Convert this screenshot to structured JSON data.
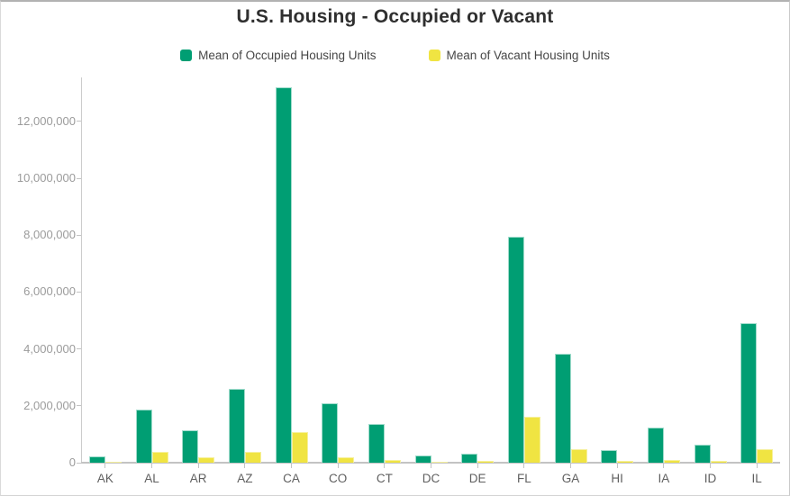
{
  "window": {
    "frame_border_color": "#c9c9c9",
    "background": "#ffffff"
  },
  "chart_data": {
    "type": "bar",
    "title": "U.S. Housing - Occupied or Vacant",
    "xlabel": "",
    "ylabel": "",
    "categories": [
      "AK",
      "AL",
      "AR",
      "AZ",
      "CA",
      "CO",
      "CT",
      "DC",
      "DE",
      "FL",
      "GA",
      "HI",
      "IA",
      "ID",
      "IL"
    ],
    "series": [
      {
        "name": "Mean of Occupied Housing Units",
        "color": "#009e73",
        "border_color": "#9fdbcb",
        "values": [
          220000,
          1860000,
          1150000,
          2590000,
          13210000,
          2100000,
          1360000,
          240000,
          330000,
          7930000,
          3820000,
          440000,
          1240000,
          620000,
          4890000
        ]
      },
      {
        "name": "Mean of Vacant Housing Units",
        "color": "#f0e442",
        "border_color": "#f6f09b",
        "values": [
          45000,
          365000,
          195000,
          365000,
          1070000,
          190000,
          95000,
          35000,
          60000,
          1600000,
          460000,
          75000,
          105000,
          70000,
          465000
        ]
      }
    ],
    "y_ticks": {
      "values": [
        0,
        2000000,
        4000000,
        6000000,
        8000000,
        10000000,
        12000000
      ],
      "labels": [
        "0",
        "2,000,000",
        "4,000,000",
        "6,000,000",
        "8,000,000",
        "10,000,000",
        "12,000,000"
      ]
    },
    "ylim": [
      0,
      13250000
    ],
    "grid": false,
    "legend_position": "top",
    "axis_color": "#cccccc",
    "y_label_color": "#9b9b9b",
    "x_label_color": "#5f5f5f"
  }
}
